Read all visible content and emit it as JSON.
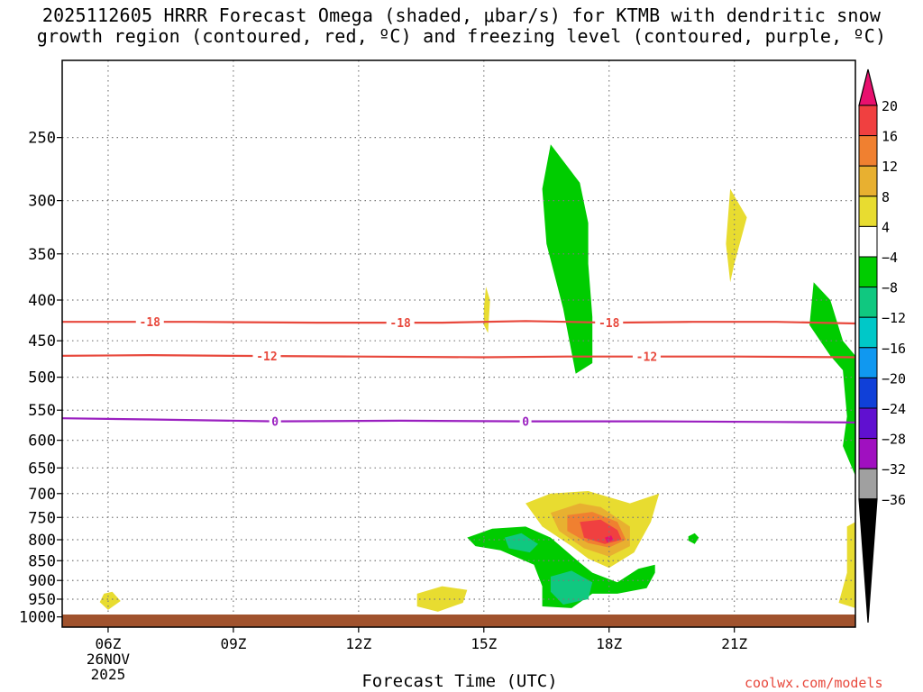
{
  "title_lines": [
    "2025112605 HRRR Forecast Omega (shaded, μbar/s) for KTMB with dendritic snow",
    "growth region (contoured, red, ºC) and freezing level (contoured, purple, ºC)"
  ],
  "xlabel": "Forecast Time (UTC)",
  "credit": "coolwx.com/models",
  "colors": {
    "grid": "#7a7a7a",
    "dgz_contour": "#e8483c",
    "freezing_contour": "#9a1fc0",
    "terrain": "#a0522d"
  },
  "chart_data": {
    "type": "contour",
    "x_axis": {
      "range_hours": [
        4.9,
        23.9
      ],
      "ticks": [
        {
          "hour": 6,
          "label": "06Z",
          "sublabels": [
            "26NOV",
            "2025"
          ]
        },
        {
          "hour": 9,
          "label": "09Z",
          "sublabels": []
        },
        {
          "hour": 12,
          "label": "12Z",
          "sublabels": []
        },
        {
          "hour": 15,
          "label": "15Z",
          "sublabels": []
        },
        {
          "hour": 18,
          "label": "18Z",
          "sublabels": []
        },
        {
          "hour": 21,
          "label": "21Z",
          "sublabels": []
        }
      ]
    },
    "y_axis": {
      "scale": "log",
      "inverted": true,
      "range_hPa": [
        1030,
        200
      ],
      "ticks": [
        250,
        300,
        350,
        400,
        450,
        500,
        550,
        600,
        650,
        700,
        750,
        800,
        850,
        900,
        950,
        1000
      ],
      "grid": true
    },
    "colorbar": {
      "levels": [
        20,
        16,
        12,
        8,
        4,
        -4,
        -8,
        -12,
        -16,
        -20,
        -24,
        -28,
        -32,
        -36
      ],
      "colors": [
        "#e8106e",
        "#f04040",
        "#f08030",
        "#e8b030",
        "#e8dc30",
        "#ffffff",
        "#00cc00",
        "#10c880",
        "#00c8c8",
        "#1098f0",
        "#1040d8",
        "#6010d0",
        "#a010c0",
        "#a0a0a0",
        "#000000"
      ]
    },
    "contours": [
      {
        "name": "-18",
        "color": "red",
        "label_hours": [
          7.0,
          13.0,
          18.0
        ],
        "points": [
          [
            4.9,
            426
          ],
          [
            8,
            426
          ],
          [
            11,
            427
          ],
          [
            14,
            427
          ],
          [
            16,
            425
          ],
          [
            18,
            427
          ],
          [
            20,
            426
          ],
          [
            22,
            426
          ],
          [
            23.9,
            428
          ]
        ]
      },
      {
        "name": "-12",
        "color": "red",
        "label_hours": [
          9.8,
          18.9
        ],
        "points": [
          [
            4.9,
            470
          ],
          [
            7,
            469
          ],
          [
            9,
            470
          ],
          [
            12,
            471
          ],
          [
            15,
            472
          ],
          [
            17,
            471
          ],
          [
            19,
            471
          ],
          [
            21,
            471
          ],
          [
            23.9,
            472
          ]
        ]
      },
      {
        "name": "0",
        "color": "purple",
        "label_hours": [
          10.0,
          16.0
        ],
        "points": [
          [
            4.9,
            563
          ],
          [
            7,
            565
          ],
          [
            10,
            568
          ],
          [
            13,
            567
          ],
          [
            16,
            568
          ],
          [
            19,
            568
          ],
          [
            22,
            569
          ],
          [
            23.9,
            570
          ]
        ]
      }
    ],
    "omega_regions": [
      {
        "value_band": "-4 to -8",
        "color": "#00cc00",
        "points": [
          [
            16.6,
            255
          ],
          [
            16.4,
            290
          ],
          [
            16.5,
            340
          ],
          [
            16.9,
            410
          ],
          [
            17.1,
            465
          ],
          [
            17.2,
            495
          ],
          [
            17.6,
            480
          ],
          [
            17.6,
            420
          ],
          [
            17.5,
            360
          ],
          [
            17.5,
            320
          ],
          [
            17.3,
            285
          ]
        ]
      },
      {
        "value_band": "-4 to -8",
        "color": "#00cc00",
        "points": [
          [
            14.6,
            795
          ],
          [
            15.2,
            775
          ],
          [
            16.0,
            770
          ],
          [
            16.6,
            795
          ],
          [
            17.3,
            855
          ],
          [
            17.6,
            880
          ],
          [
            18.2,
            905
          ],
          [
            18.7,
            870
          ],
          [
            19.1,
            860
          ],
          [
            19.1,
            880
          ],
          [
            18.9,
            920
          ],
          [
            18.2,
            935
          ],
          [
            17.6,
            935
          ],
          [
            17.1,
            975
          ],
          [
            16.4,
            970
          ],
          [
            16.4,
            915
          ],
          [
            16.2,
            860
          ],
          [
            15.4,
            825
          ],
          [
            14.8,
            815
          ]
        ]
      },
      {
        "value_band": "-8 to -12",
        "color": "#10c880",
        "points": [
          [
            15.5,
            795
          ],
          [
            15.9,
            785
          ],
          [
            16.3,
            810
          ],
          [
            16.1,
            830
          ],
          [
            15.6,
            820
          ]
        ]
      },
      {
        "value_band": "-8 to -12",
        "color": "#10c880",
        "points": [
          [
            16.6,
            890
          ],
          [
            17.1,
            875
          ],
          [
            17.6,
            905
          ],
          [
            17.5,
            950
          ],
          [
            16.9,
            965
          ],
          [
            16.6,
            930
          ]
        ]
      },
      {
        "value_band": "-4 to -8",
        "color": "#00cc00",
        "points": [
          [
            19.9,
            792
          ],
          [
            20.05,
            785
          ],
          [
            20.15,
            795
          ],
          [
            20.05,
            810
          ],
          [
            19.9,
            802
          ]
        ]
      },
      {
        "value_band": "-4 to -8",
        "color": "#00cc00",
        "points": [
          [
            22.9,
            380
          ],
          [
            23.3,
            400
          ],
          [
            23.6,
            450
          ],
          [
            23.9,
            470
          ],
          [
            23.9,
            665
          ],
          [
            23.6,
            610
          ],
          [
            23.7,
            560
          ],
          [
            23.6,
            490
          ],
          [
            23.3,
            470
          ],
          [
            22.8,
            430
          ]
        ]
      },
      {
        "value_band": "4 to 8",
        "color": "#e8dc30",
        "points": [
          [
            16.0,
            720
          ],
          [
            16.6,
            700
          ],
          [
            17.5,
            695
          ],
          [
            18.5,
            720
          ],
          [
            19.2,
            700
          ],
          [
            19.0,
            760
          ],
          [
            18.6,
            830
          ],
          [
            18.0,
            868
          ],
          [
            17.5,
            845
          ],
          [
            17.1,
            815
          ],
          [
            16.4,
            770
          ]
        ]
      },
      {
        "value_band": "8 to 12",
        "color": "#e8b030",
        "points": [
          [
            16.6,
            740
          ],
          [
            17.3,
            720
          ],
          [
            17.8,
            728
          ],
          [
            18.5,
            770
          ],
          [
            18.5,
            815
          ],
          [
            18.0,
            840
          ],
          [
            17.4,
            820
          ],
          [
            16.8,
            780
          ]
        ]
      },
      {
        "value_band": "12 to 16",
        "color": "#f08030",
        "points": [
          [
            17.0,
            745
          ],
          [
            17.6,
            738
          ],
          [
            18.2,
            760
          ],
          [
            18.4,
            800
          ],
          [
            18.0,
            818
          ],
          [
            17.5,
            808
          ],
          [
            17.0,
            780
          ]
        ]
      },
      {
        "value_band": "16 to 20",
        "color": "#f04040",
        "points": [
          [
            17.3,
            760
          ],
          [
            17.8,
            755
          ],
          [
            18.2,
            778
          ],
          [
            18.3,
            800
          ],
          [
            17.9,
            810
          ],
          [
            17.4,
            795
          ]
        ]
      },
      {
        "value_band": ">20",
        "color": "#e8106e",
        "points": [
          [
            17.9,
            795
          ],
          [
            18.05,
            790
          ],
          [
            18.1,
            800
          ],
          [
            17.95,
            806
          ]
        ]
      },
      {
        "value_band": "4 to 8",
        "color": "#e8dc30",
        "points": [
          [
            13.4,
            935
          ],
          [
            14.0,
            915
          ],
          [
            14.6,
            925
          ],
          [
            14.5,
            960
          ],
          [
            13.9,
            985
          ],
          [
            13.4,
            970
          ]
        ]
      },
      {
        "value_band": "4 to 8",
        "color": "#e8dc30",
        "points": [
          [
            5.8,
            958
          ],
          [
            5.9,
            935
          ],
          [
            6.1,
            930
          ],
          [
            6.3,
            955
          ],
          [
            6.0,
            980
          ]
        ]
      },
      {
        "value_band": "4 to 8",
        "color": "#e8dc30",
        "points": [
          [
            15.0,
            410
          ],
          [
            15.05,
            385
          ],
          [
            15.15,
            400
          ],
          [
            15.1,
            440
          ],
          [
            15.0,
            430
          ]
        ]
      },
      {
        "value_band": "4 to 8",
        "color": "#e8dc30",
        "points": [
          [
            20.9,
            290
          ],
          [
            21.3,
            315
          ],
          [
            21.0,
            360
          ],
          [
            20.9,
            380
          ],
          [
            20.8,
            340
          ]
        ]
      },
      {
        "value_band": "4 to 8",
        "color": "#e8dc30",
        "points": [
          [
            23.7,
            770
          ],
          [
            23.9,
            760
          ],
          [
            23.9,
            975
          ],
          [
            23.5,
            960
          ],
          [
            23.7,
            880
          ]
        ]
      }
    ]
  }
}
